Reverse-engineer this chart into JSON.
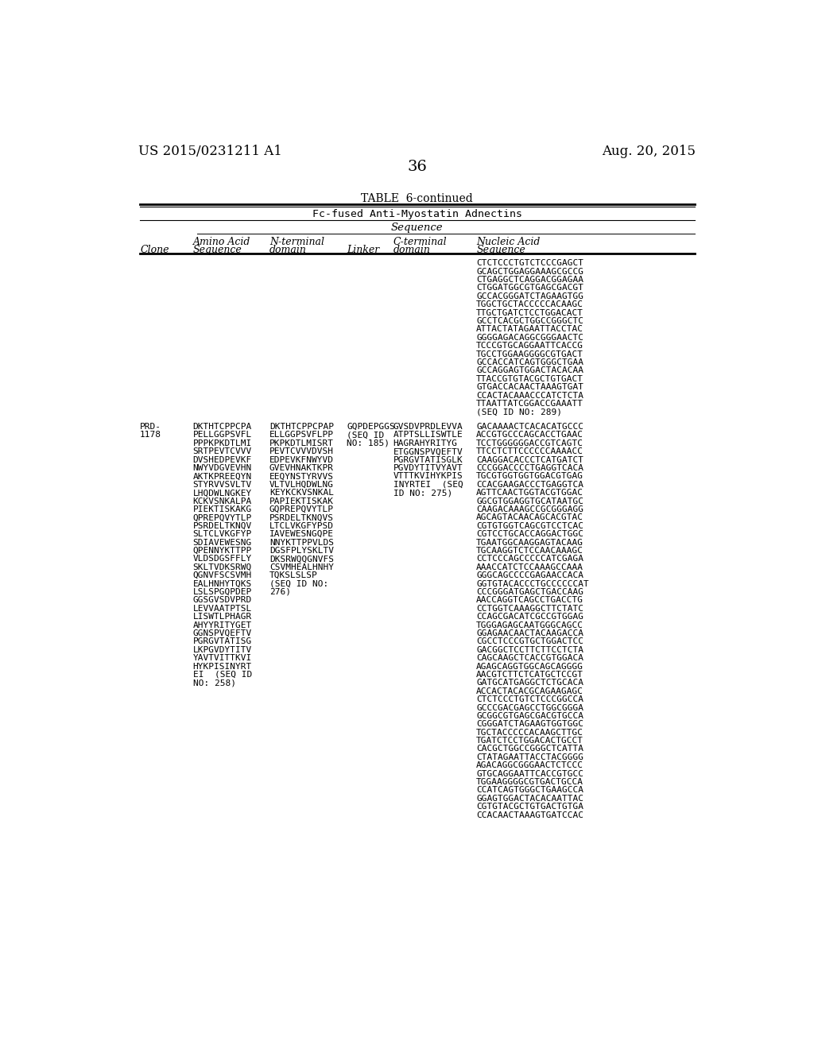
{
  "background_color": "#ffffff",
  "header_left": "US 2015/0231211 A1",
  "header_right": "Aug. 20, 2015",
  "page_number": "36",
  "table_title": "TABLE  6-continued",
  "table_subtitle": "Fc-fused Anti-Myostatin Adnectins",
  "nucleic_acid_continuation": [
    "CTCTCCCTGTCTCCCGAGCT",
    "GCAGCTGGAGGAAAGCGCCG",
    "CTGAGGCTCAGGACGGAGAA",
    "CTGGATGGCGTGAGCGACGT",
    "GCCACGGGATCTAGAAGTGG",
    "TGGCTGCTACCCCCACAAGC",
    "TTGCTGATCTCCTGGACACT",
    "GCCTCACGCTGGCCGGGCTC",
    "ATTACTATAGAATTACCTAC",
    "GGGGAGACAGGCGGGAACTC",
    "TCCCGTGCAGGAATTCACCG",
    "TGCCTGGAAGGGGCGTGACT",
    "GCCACCATCAGTGGGCTGAA",
    "GCCAGGAGTGGACTACACAA",
    "TTACCGTGTACGCTGTGACT",
    "GTGACCACAACTAAAGTGAT",
    "CCACTACAAACCCATCTCTA",
    "TTAATTATCGGACCGAAATT",
    "(SEQ ID NO: 289)"
  ],
  "prd1178_amino": [
    "DKTHTCPPCPA",
    "PELLGGPSVFL",
    "PPPKPKDTLMI",
    "SRTPEVTCVVV",
    "DVSHEDPEVKF",
    "NWYVDGVEVHN",
    "AKTKPREEQYN",
    "STYRVVSVLTV",
    "LHQDWLNGKEY",
    "KCKVSNKALPA",
    "PIEKTISKAKG",
    "QPREPQVYTLP",
    "PSRDELTKNQV",
    "SLTCLVKGFYP",
    "SDIAVEWESNG",
    "QPENNYKTTPP",
    "VLDSDGSFFLY",
    "SKLTVDKSRWQ",
    "QGNVFSCSVMH",
    "EALHNHYTQKS",
    "LSLSPGQPDEP",
    "GGSGVSDVPRD",
    "LEVVAATPTSL",
    "LISWTLPHAGR",
    "AHYYRITYGET",
    "GGNSPVQEFTV",
    "PGRGVTATISG",
    "LKPGVDYTITV",
    "YAVTVITTKVI",
    "HYKPISINYRT",
    "EI  (SEQ ID",
    "NO: 258)"
  ],
  "prd1178_nterminal": [
    "DKTHTCPPCPAP",
    "ELLGGPSVFLPP",
    "PKPKDTLMISRT",
    "PEVTCVVVDVSH",
    "EDPEVKFNWYVD",
    "GVEVHNAKTKPR",
    "EEQYNSTYRVVS",
    "VLTVLHQDWLNG",
    "KEYKCKVSNKAL",
    "PAPIEKTISKAK",
    "GQPREPQVYTLP",
    "PSRDELTKNQVS",
    "LTCLVKGFYPSD",
    "IAVEWESNGQPE",
    "NNYKTTPPVLDS",
    "DGSFPLYSKLTV",
    "DKSRWQQGNVFS",
    "CSVMHEALHNHY",
    "TQKSLSLSP",
    "(SEQ ID NO:",
    "276)"
  ],
  "prd1178_linker": [
    "GQPDEPGGS",
    "(SEQ ID",
    "NO: 185)"
  ],
  "prd1178_cterminal": [
    "GVSDVPRDLEVVA",
    "ATPTSLLISWTLE",
    "HAGRAHYRITYG",
    "ETGGNSPVQEFTV",
    "PGRGVTATISGLK",
    "PGVDYTITVYAVT",
    "VTTTKVIHYKPIS",
    "INYRTEI  (SEQ",
    "ID NO: 275)"
  ],
  "prd1178_nucleic": [
    "GACAAAACTCACACATGCCC",
    "ACCGTGCCCAGCACCTGAAC",
    "TCCTGGGGGGACCGTCAGTC",
    "TTCCTCTTCCCCCCAAAACC",
    "CAAGGACACCCTCATGATCT",
    "CCCGGACCCCTGAGGTCACA",
    "TGCGTGGTGGTGGACGTGAG",
    "CCACGAAGACCCTGAGGTCA",
    "AGTTCAACTGGTACGTGGAC",
    "GGCGTGGAGGTGCATAATGC",
    "CAAGACAAAGCCGCGGGAGG",
    "AGCAGTACAACAGCACGTAC",
    "CGTGTGGTCAGCGTCCTCAC",
    "CGTCCTGCACCAGGACTGGC",
    "TGAATGGCAAGGAGTACAAG",
    "TGCAAGGTCTCCAACAAAGC",
    "CCTCCCAGCCCCCATCGAGA",
    "AAACCATCTCCAAAGCCAAA",
    "GGGCAGCCCCGAGAACCACA",
    "GGTGTACACCCTGCCCCCCAT",
    "CCCGGGATGAGCTGACCAAG",
    "AACCAGGTCAGCCTGACCTG",
    "CCTGGTCAAAGGCTTCTATC",
    "CCAGCGACATCGCCGTGGAG",
    "TGGGAGAGCAATGGGCAGCC",
    "GGAGAACAACTACAAGACCA",
    "CGCCTCCCGTGCTGGACTCC",
    "GACGGCTCCTTCTTCCTCTA",
    "CAGCAAGCTCACCGTGGACA",
    "AGAGCAGGTGGCAGCAGGGG",
    "AACGTCTTCTCATGCTCCGT",
    "GATGCATGAGGCTCTGCACA",
    "ACCACTACACGCAGAAGAGC",
    "CTCTCCCTGTCTCCCGGCCA",
    "GCCCGACGAGCCTGGCGGGA",
    "GCGGCGTGAGCGACGTGCCA",
    "CGGGATCTAGAAGTGGTGGC",
    "TGCTACCCCCACAAGCTTGC",
    "TGATCTCCTGGACACTGCCT",
    "CACGCTGGCCGGGCTCATTA",
    "CTATAGAATTACCTACGGGG",
    "AGACAGGCGGGAACTCTCCC",
    "GTGCAGGAATTCACCGTGCC",
    "TGGAAGGGGCGTGACTGCCA",
    "CCATCAGTGGGCTGAAGCCA",
    "GGAGTGGACTACACAATTAC",
    "CGTGTACGCTGTGACTGTGA",
    "CCACAACTAAAGTGATCCAC"
  ]
}
